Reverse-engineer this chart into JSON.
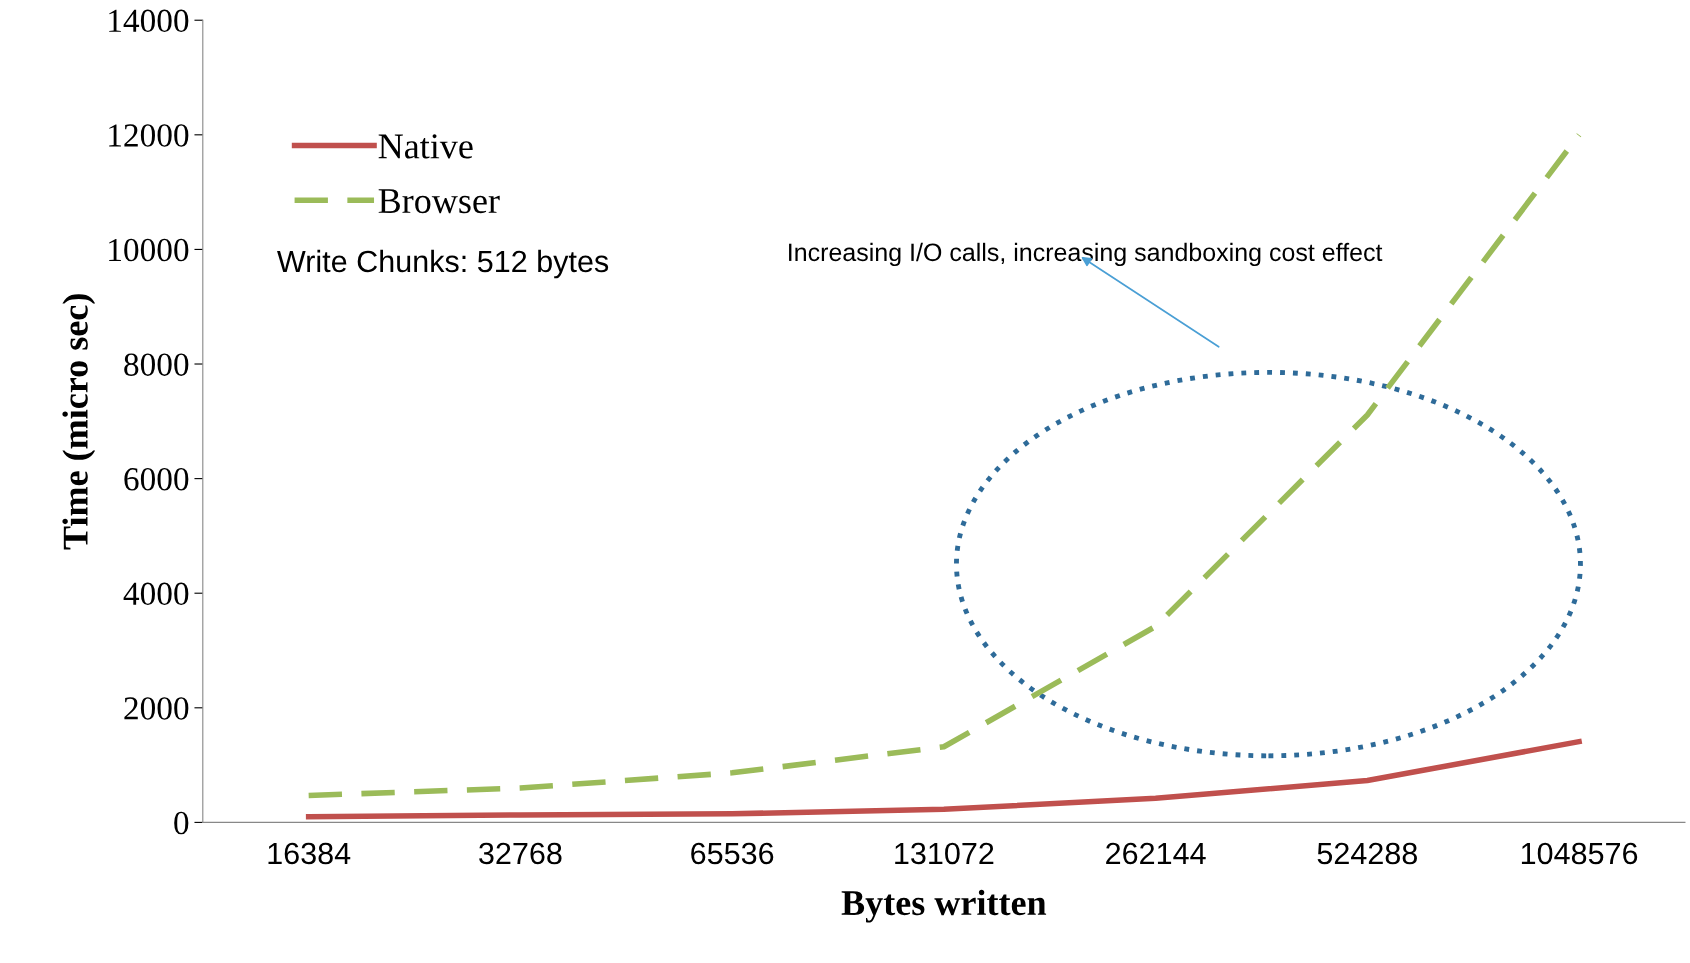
{
  "chart_data": {
    "type": "line",
    "xlabel": "Bytes written",
    "ylabel": "Time (micro sec)",
    "categories": [
      "16384",
      "32768",
      "65536",
      "131072",
      "262144",
      "524288",
      "1048576"
    ],
    "series": [
      {
        "name": "Native",
        "color": "#c0504d",
        "line_style": "solid",
        "values": [
          100,
          130,
          150,
          230,
          420,
          730,
          1410
        ]
      },
      {
        "name": "Browser",
        "color": "#9bbb59",
        "line_style": "dashed",
        "values": [
          470,
          600,
          865,
          1320,
          3420,
          7110,
          12000
        ]
      }
    ],
    "ylim": [
      0,
      14000
    ],
    "yticks": [
      0,
      2000,
      4000,
      6000,
      8000,
      10000,
      12000,
      14000
    ],
    "grid": false,
    "legend": "top left",
    "marker": "none",
    "annotations": [
      "Write Chunks: 512 bytes",
      "Increasing I/O calls, increasing sandboxing cost effect"
    ]
  }
}
